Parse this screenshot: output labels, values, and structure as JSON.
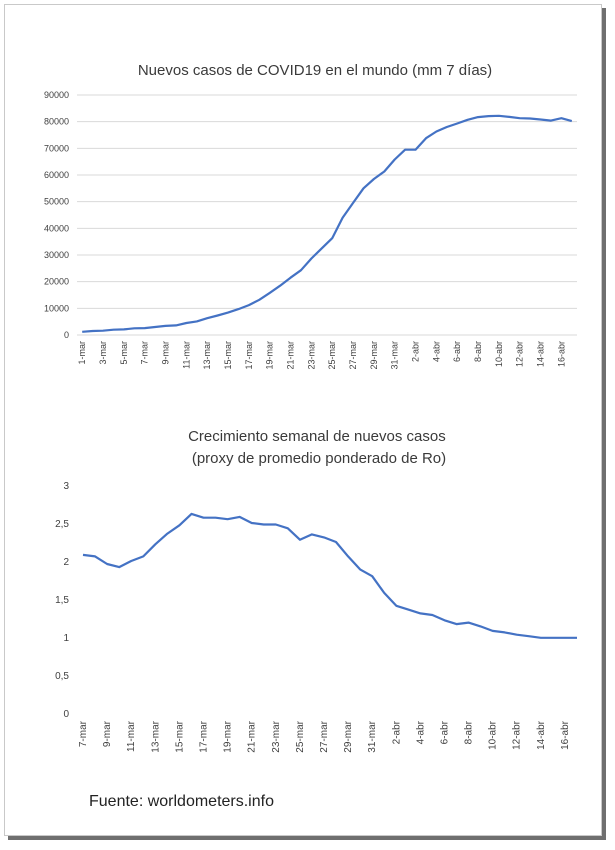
{
  "colors": {
    "line": "#4472c4",
    "grid": "#d9d9d9",
    "text": "#3a3a3a"
  },
  "source": "Fuente: worldometers.info",
  "chart_data": [
    {
      "type": "line",
      "title": "Nuevos casos de COVID19 en el mundo (mm 7 días)",
      "grid": true,
      "ylim": [
        0,
        90000
      ],
      "yticks": [
        "0",
        "10000",
        "20000",
        "30000",
        "40000",
        "50000",
        "60000",
        "70000",
        "80000",
        "90000"
      ],
      "xticks": [
        "1-mar",
        "3-mar",
        "5-mar",
        "7-mar",
        "9-mar",
        "11-mar",
        "13-mar",
        "15-mar",
        "17-mar",
        "19-mar",
        "21-mar",
        "23-mar",
        "25-mar",
        "27-mar",
        "29-mar",
        "31-mar",
        "2-abr",
        "4-abr",
        "6-abr",
        "8-abr",
        "10-abr",
        "12-abr",
        "14-abr",
        "16-abr"
      ],
      "series": [
        {
          "x": [
            "1-mar",
            "2-mar",
            "3-mar",
            "4-mar",
            "5-mar",
            "6-mar",
            "7-mar",
            "8-mar",
            "9-mar",
            "10-mar",
            "11-mar",
            "12-mar",
            "13-mar",
            "14-mar",
            "15-mar",
            "16-mar",
            "17-mar",
            "18-mar",
            "19-mar",
            "20-mar",
            "21-mar",
            "22-mar",
            "23-mar",
            "24-mar",
            "25-mar",
            "26-mar",
            "27-mar",
            "28-mar",
            "29-mar",
            "30-mar",
            "31-mar",
            "1-abr",
            "2-abr",
            "3-abr",
            "4-abr",
            "5-abr",
            "6-abr",
            "7-abr",
            "8-abr",
            "9-abr",
            "10-abr",
            "11-abr",
            "12-abr",
            "13-abr",
            "14-abr",
            "15-abr",
            "16-abr",
            "17-abr"
          ],
          "values": [
            1200,
            1500,
            1600,
            2000,
            2100,
            2500,
            2600,
            3000,
            3400,
            3600,
            4500,
            5100,
            6300,
            7300,
            8400,
            9700,
            11200,
            13200,
            15800,
            18500,
            21500,
            24300,
            28700,
            32500,
            36300,
            44000,
            49500,
            55000,
            58500,
            61300,
            65800,
            69500,
            69500,
            73800,
            76300,
            78000,
            79300,
            80700,
            81700,
            82100,
            82200,
            81800,
            81300,
            81200,
            80800,
            80400,
            81300,
            80200
          ]
        }
      ]
    },
    {
      "type": "line",
      "title": "Crecimiento semanal de nuevos casos\n(proxy de promedio ponderado de Ro)",
      "grid": false,
      "ylim": [
        0,
        3
      ],
      "yticks": [
        "0",
        "0,5",
        "1",
        "1,5",
        "2",
        "2,5",
        "3"
      ],
      "xticks": [
        "7-mar",
        "9-mar",
        "11-mar",
        "13-mar",
        "15-mar",
        "17-mar",
        "19-mar",
        "21-mar",
        "23-mar",
        "25-mar",
        "27-mar",
        "29-mar",
        "31-mar",
        "2-abr",
        "4-abr",
        "6-abr",
        "8-abr",
        "10-abr",
        "12-abr",
        "14-abr",
        "16-abr"
      ],
      "series": [
        {
          "x": [
            "7-mar",
            "8-mar",
            "9-mar",
            "10-mar",
            "11-mar",
            "12-mar",
            "13-mar",
            "14-mar",
            "15-mar",
            "16-mar",
            "17-mar",
            "18-mar",
            "19-mar",
            "20-mar",
            "21-mar",
            "22-mar",
            "23-mar",
            "24-mar",
            "25-mar",
            "26-mar",
            "27-mar",
            "28-mar",
            "29-mar",
            "30-mar",
            "31-mar",
            "1-abr",
            "2-abr",
            "3-abr",
            "4-abr",
            "5-abr",
            "6-abr",
            "7-abr",
            "8-abr",
            "9-abr",
            "10-abr",
            "11-abr",
            "12-abr",
            "13-abr",
            "14-abr",
            "15-abr",
            "16-abr",
            "17-abr"
          ],
          "values": [
            2.08,
            2.06,
            1.96,
            1.92,
            2.0,
            2.06,
            2.22,
            2.36,
            2.47,
            2.62,
            2.57,
            2.57,
            2.55,
            2.58,
            2.5,
            2.48,
            2.48,
            2.43,
            2.28,
            2.35,
            2.31,
            2.25,
            2.06,
            1.89,
            1.8,
            1.58,
            1.41,
            1.36,
            1.31,
            1.29,
            1.22,
            1.17,
            1.19,
            1.14,
            1.08,
            1.06,
            1.03,
            1.01,
            0.99,
            0.99,
            0.99,
            0.99
          ]
        }
      ]
    }
  ]
}
